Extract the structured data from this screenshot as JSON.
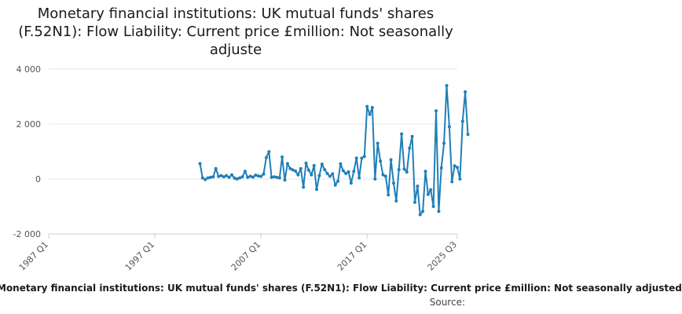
{
  "title": "Monetary financial institutions: UK mutual funds' shares (F.52N1): Flow Liability: Current price £million: Not seasonally adjuste",
  "footer": {
    "series_label": "Monetary financial institutions: UK mutual funds' shares (F.52N1): Flow Liability: Current price £million: Not seasonally adjusted",
    "source_label": "Source:"
  },
  "colors": {
    "series": "#1f7fb8",
    "grid": "#e6e6e6",
    "axis_text": "#555555"
  },
  "chart_data": {
    "type": "line",
    "title": "Monetary financial institutions: UK mutual funds' shares (F.52N1): Flow Liability: Current price £million: Not seasonally adjuste",
    "xlabel": "",
    "ylabel": "",
    "ylim": [
      -2000,
      4000
    ],
    "y_ticks": [
      -2000,
      0,
      2000,
      4000
    ],
    "y_tick_labels": [
      "-2 000",
      "0",
      "2 000",
      "4 000"
    ],
    "x_range": [
      1987.0,
      2025.5
    ],
    "x_ticks": [
      1987.0,
      1997.0,
      2007.0,
      2017.0,
      2025.5
    ],
    "x_tick_labels": [
      "1987 Q1",
      "1997 Q1",
      "2007 Q1",
      "2017 Q1",
      "2025 Q3"
    ],
    "grid": true,
    "series": [
      {
        "values": [
          [
            2001.25,
            560
          ],
          [
            2001.5,
            40
          ],
          [
            2001.75,
            -20
          ],
          [
            2002.0,
            40
          ],
          [
            2002.25,
            60
          ],
          [
            2002.5,
            80
          ],
          [
            2002.75,
            380
          ],
          [
            2003.0,
            90
          ],
          [
            2003.25,
            120
          ],
          [
            2003.5,
            80
          ],
          [
            2003.75,
            120
          ],
          [
            2004.0,
            60
          ],
          [
            2004.25,
            150
          ],
          [
            2004.5,
            30
          ],
          [
            2004.75,
            0
          ],
          [
            2005.0,
            40
          ],
          [
            2005.25,
            80
          ],
          [
            2005.5,
            280
          ],
          [
            2005.75,
            60
          ],
          [
            2006.0,
            100
          ],
          [
            2006.25,
            70
          ],
          [
            2006.5,
            140
          ],
          [
            2006.75,
            110
          ],
          [
            2007.0,
            90
          ],
          [
            2007.25,
            180
          ],
          [
            2007.5,
            780
          ],
          [
            2007.75,
            990
          ],
          [
            2008.0,
            60
          ],
          [
            2008.25,
            80
          ],
          [
            2008.5,
            60
          ],
          [
            2008.75,
            40
          ],
          [
            2009.0,
            800
          ],
          [
            2009.25,
            -40
          ],
          [
            2009.5,
            560
          ],
          [
            2009.75,
            380
          ],
          [
            2010.0,
            330
          ],
          [
            2010.25,
            290
          ],
          [
            2010.5,
            150
          ],
          [
            2010.75,
            380
          ],
          [
            2011.0,
            -300
          ],
          [
            2011.25,
            580
          ],
          [
            2011.5,
            320
          ],
          [
            2011.75,
            150
          ],
          [
            2012.0,
            490
          ],
          [
            2012.25,
            -380
          ],
          [
            2012.5,
            120
          ],
          [
            2012.75,
            540
          ],
          [
            2013.0,
            340
          ],
          [
            2013.25,
            200
          ],
          [
            2013.5,
            100
          ],
          [
            2013.75,
            190
          ],
          [
            2014.0,
            -220
          ],
          [
            2014.25,
            -80
          ],
          [
            2014.5,
            550
          ],
          [
            2014.75,
            300
          ],
          [
            2015.0,
            200
          ],
          [
            2015.25,
            260
          ],
          [
            2015.5,
            -150
          ],
          [
            2015.75,
            280
          ],
          [
            2016.0,
            760
          ],
          [
            2016.25,
            40
          ],
          [
            2016.5,
            760
          ],
          [
            2016.75,
            820
          ],
          [
            2017.0,
            2640
          ],
          [
            2017.25,
            2350
          ],
          [
            2017.5,
            2600
          ],
          [
            2017.75,
            0
          ],
          [
            2018.0,
            1300
          ],
          [
            2018.25,
            650
          ],
          [
            2018.5,
            150
          ],
          [
            2018.75,
            100
          ],
          [
            2019.0,
            -580
          ],
          [
            2019.25,
            700
          ],
          [
            2019.5,
            -150
          ],
          [
            2019.75,
            -800
          ],
          [
            2020.0,
            340
          ],
          [
            2020.25,
            1640
          ],
          [
            2020.5,
            360
          ],
          [
            2020.75,
            250
          ],
          [
            2021.0,
            1120
          ],
          [
            2021.25,
            1550
          ],
          [
            2021.5,
            -850
          ],
          [
            2021.75,
            -260
          ],
          [
            2022.0,
            -1300
          ],
          [
            2022.25,
            -1180
          ],
          [
            2022.5,
            280
          ],
          [
            2022.75,
            -560
          ],
          [
            2023.0,
            -390
          ],
          [
            2023.25,
            -1000
          ],
          [
            2023.5,
            2480
          ],
          [
            2023.75,
            -1180
          ],
          [
            2024.0,
            400
          ],
          [
            2024.25,
            1300
          ],
          [
            2024.5,
            3400
          ],
          [
            2024.75,
            1900
          ],
          [
            2025.0,
            -100
          ],
          [
            2025.25,
            480
          ],
          [
            2025.5,
            420
          ],
          [
            2025.75,
            0
          ],
          [
            2026.0,
            2100
          ],
          [
            2026.25,
            3170
          ],
          [
            2026.5,
            1620
          ]
        ]
      }
    ]
  }
}
